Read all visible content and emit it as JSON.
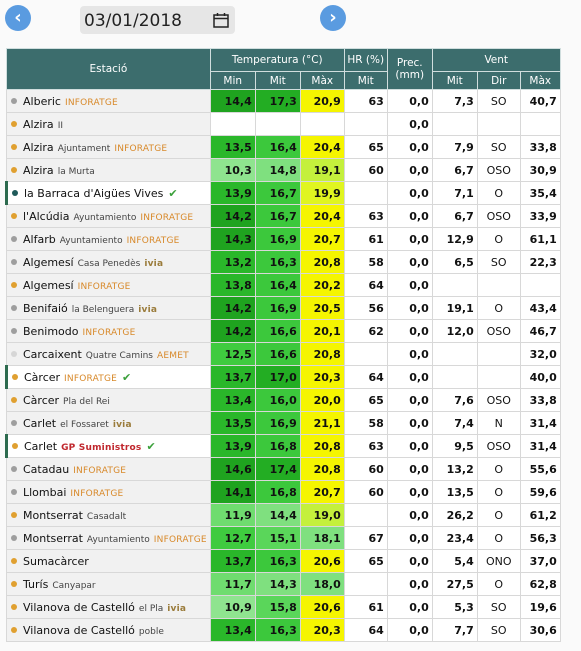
{
  "nav": {
    "date": "03/01/2018"
  },
  "table": {
    "headers": {
      "station": "Estació",
      "temperature": "Temperatura (°C)",
      "hr": "HR (%)",
      "prec": [
        "Prec.",
        "(mm)"
      ],
      "wind": "Vent",
      "sub": [
        "Min",
        "Mit",
        "Màx",
        "Mit",
        "Mit",
        "Dir",
        "Màx"
      ]
    },
    "rows": [
      {
        "station": "Alberic",
        "network": "INFORATGE",
        "status": "#9e9e9e",
        "values": [
          "14,4",
          "17,3",
          "20,9",
          "63",
          "0,0",
          "7,3",
          "SO",
          "40,7"
        ]
      },
      {
        "station": "Alzira",
        "place": "II",
        "status": "#e0a030",
        "values": [
          null,
          null,
          null,
          null,
          "0,0",
          null,
          null,
          null
        ]
      },
      {
        "station": "Alzira",
        "place": "Ajuntament",
        "network": "INFORATGE",
        "status": "#e0a030",
        "values": [
          "13,5",
          "16,4",
          "20,4",
          "65",
          "0,0",
          "7,9",
          "SO",
          "33,8"
        ]
      },
      {
        "station": "Alzira",
        "place": "la Murta",
        "status": "#e0a030",
        "values": [
          "10,3",
          "14,8",
          "19,1",
          "60",
          "0,0",
          "6,7",
          "OSO",
          "30,9"
        ]
      },
      {
        "station": "la Barraca d'Aigües Vives",
        "status": "#1f5a5a",
        "verified": true,
        "values": [
          "13,9",
          "16,7",
          "19,9",
          null,
          "0,0",
          "7,1",
          "O",
          "35,4"
        ]
      },
      {
        "station": "l'Alcúdia",
        "place": "Ayuntamiento",
        "network": "INFORATGE",
        "status": "#e0a030",
        "values": [
          "14,2",
          "16,7",
          "20,4",
          "63",
          "0,0",
          "6,7",
          "OSO",
          "33,9"
        ]
      },
      {
        "station": "Alfarb",
        "place": "Ayuntamiento",
        "network": "INFORATGE",
        "status": "#9e9e9e",
        "values": [
          "14,3",
          "16,9",
          "20,7",
          "61",
          "0,0",
          "12,9",
          "O",
          "61,1"
        ]
      },
      {
        "station": "Algemesí",
        "place": "Casa Penedès",
        "network": "ivia",
        "status": "#9e9e9e",
        "values": [
          "13,2",
          "16,3",
          "20,8",
          "58",
          "0,0",
          "6,5",
          "SO",
          "22,3"
        ]
      },
      {
        "station": "Algemesí",
        "network": "INFORATGE",
        "status": "#e0a030",
        "values": [
          "13,8",
          "16,4",
          "20,2",
          "64",
          "0,0",
          null,
          null,
          null
        ]
      },
      {
        "station": "Benifaió",
        "place": "la Belenguera",
        "network": "ivia",
        "status": "#9e9e9e",
        "values": [
          "14,2",
          "16,9",
          "20,5",
          "56",
          "0,0",
          "19,1",
          "O",
          "43,4"
        ]
      },
      {
        "station": "Benimodo",
        "network": "INFORATGE",
        "status": "#9e9e9e",
        "values": [
          "14,2",
          "16,6",
          "20,1",
          "62",
          "0,0",
          "12,0",
          "OSO",
          "46,7"
        ]
      },
      {
        "station": "Carcaixent",
        "place": "Quatre Camins",
        "network": "AEMET",
        "status": "#d6d6d6",
        "values": [
          "12,5",
          "16,6",
          "20,8",
          null,
          "0,0",
          null,
          null,
          "32,0"
        ]
      },
      {
        "station": "Càrcer",
        "network": "INFORATGE",
        "status": "#e0a030",
        "verified": true,
        "values": [
          "13,7",
          "17,0",
          "20,3",
          "64",
          "0,0",
          null,
          null,
          "40,0"
        ]
      },
      {
        "station": "Càrcer",
        "place": "Pla del Rei",
        "status": "#e0a030",
        "values": [
          "13,4",
          "16,0",
          "20,0",
          "65",
          "0,0",
          "7,6",
          "OSO",
          "33,8"
        ]
      },
      {
        "station": "Carlet",
        "place": "el Fossaret",
        "network": "ivia",
        "status": "#9e9e9e",
        "values": [
          "13,5",
          "16,9",
          "21,1",
          "58",
          "0,0",
          "7,4",
          "N",
          "31,4"
        ]
      },
      {
        "station": "Carlet",
        "network": "GP Suministros",
        "status": "#e0a030",
        "verified": true,
        "values": [
          "13,9",
          "16,8",
          "20,8",
          "63",
          "0,0",
          "9,5",
          "OSO",
          "31,4"
        ]
      },
      {
        "station": "Catadau",
        "network": "INFORATGE",
        "status": "#9e9e9e",
        "values": [
          "14,6",
          "17,4",
          "20,8",
          "60",
          "0,0",
          "13,2",
          "O",
          "55,6"
        ]
      },
      {
        "station": "Llombai",
        "network": "INFORATGE",
        "status": "#9e9e9e",
        "values": [
          "14,1",
          "16,8",
          "20,7",
          "60",
          "0,0",
          "13,5",
          "O",
          "59,6"
        ]
      },
      {
        "station": "Montserrat",
        "place": "Casadalt",
        "status": "#e0a030",
        "values": [
          "11,9",
          "14,4",
          "19,0",
          null,
          "0,0",
          "26,2",
          "O",
          "61,2"
        ]
      },
      {
        "station": "Montserrat",
        "place": "Ayuntamiento",
        "network": "INFORATGE",
        "status": "#9e9e9e",
        "values": [
          "12,7",
          "15,1",
          "18,1",
          "67",
          "0,0",
          "23,4",
          "O",
          "56,3"
        ]
      },
      {
        "station": "Sumacàrcer",
        "status": "#e0a030",
        "values": [
          "13,7",
          "16,3",
          "20,6",
          "65",
          "0,0",
          "5,4",
          "ONO",
          "37,0"
        ]
      },
      {
        "station": "Turís",
        "place": "Canyapar",
        "status": "#e0a030",
        "values": [
          "11,7",
          "14,3",
          "18,0",
          null,
          "0,0",
          "27,5",
          "O",
          "62,8"
        ]
      },
      {
        "station": "Vilanova de Castelló",
        "place": "el Pla",
        "network": "ivia",
        "status": "#e0a030",
        "values": [
          "10,9",
          "15,8",
          "20,6",
          "61",
          "0,0",
          "5,3",
          "SO",
          "19,6"
        ]
      },
      {
        "station": "Vilanova de Castelló",
        "place": "poble",
        "status": "#e0a030",
        "values": [
          "13,4",
          "16,3",
          "20,3",
          "64",
          "0,0",
          "7,7",
          "SO",
          "30,6"
        ]
      }
    ]
  }
}
